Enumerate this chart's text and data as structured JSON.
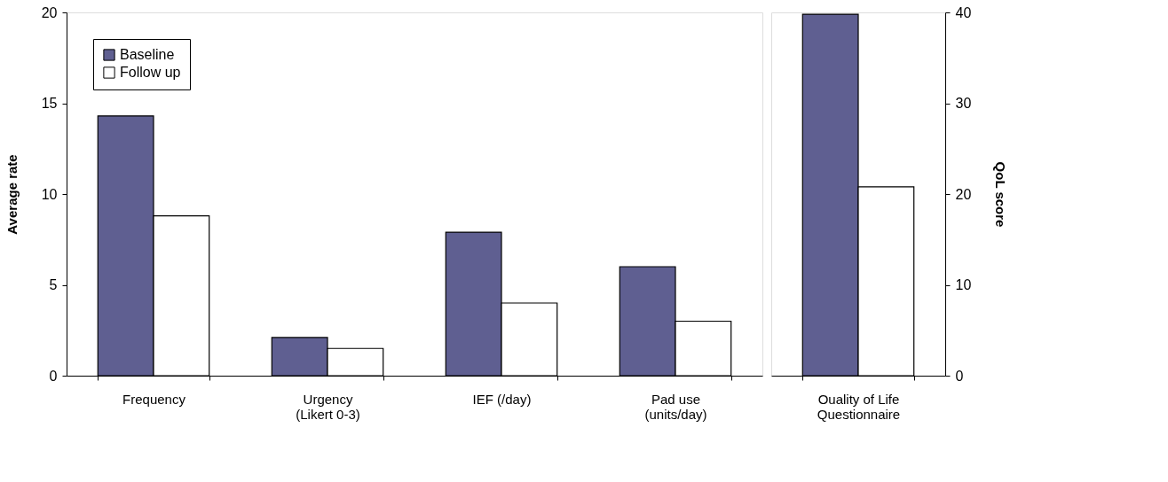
{
  "chart_data": [
    {
      "type": "bar",
      "categories": [
        "Frequency",
        "Urgency\n(Likert 0-3)",
        "IEF (/day)",
        "Pad use\n(units/day)"
      ],
      "ylabel": "Average rate",
      "ylim": [
        0,
        20
      ],
      "yticks": [
        0,
        5,
        10,
        15,
        20
      ],
      "legend": "top left",
      "grid": false,
      "series": [
        {
          "name": "Baseline",
          "color": "#5f5f91",
          "values": [
            14.3,
            2.1,
            7.9,
            6.0
          ]
        },
        {
          "name": "Follow up",
          "color": "#ffffff",
          "values": [
            8.8,
            1.5,
            4.0,
            3.0
          ]
        }
      ]
    },
    {
      "type": "bar",
      "categories": [
        "Ouality of Life\nQuestionnaire"
      ],
      "y2label": "QoL score",
      "y2lim": [
        0,
        40
      ],
      "y2ticks": [
        0,
        10,
        20,
        30,
        40
      ],
      "grid": false,
      "series": [
        {
          "color": "#5f5f91",
          "values": [
            39.8
          ],
          "axis": "y2"
        },
        {
          "color": "#ffffff",
          "values": [
            20.8
          ],
          "axis": "y2"
        }
      ]
    }
  ]
}
